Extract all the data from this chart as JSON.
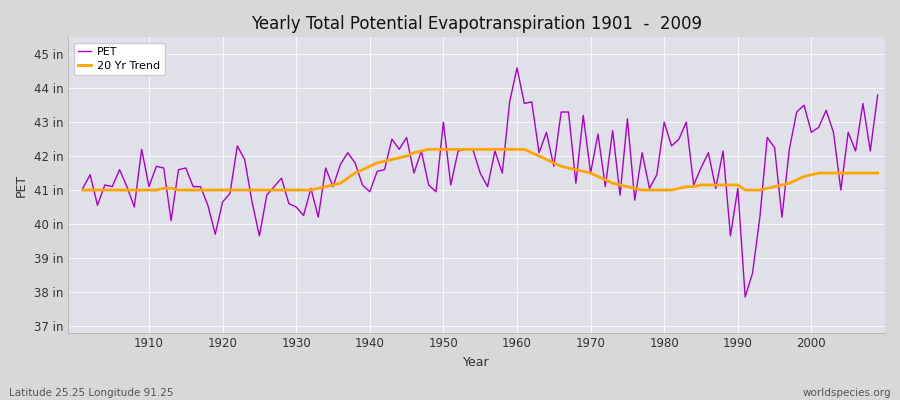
{
  "title": "Yearly Total Potential Evapotranspiration 1901  -  2009",
  "xlabel": "Year",
  "ylabel": "PET",
  "footnote_left": "Latitude 25.25 Longitude 91.25",
  "footnote_right": "worldspecies.org",
  "pet_color": "#aa00cc",
  "trend_color": "#FFA500",
  "fig_facecolor": "#d8d8d8",
  "plot_facecolor": "#e0e0e8",
  "ylim": [
    36.8,
    45.5
  ],
  "yticks": [
    37,
    38,
    39,
    40,
    41,
    42,
    43,
    44,
    45
  ],
  "ytick_labels": [
    "37 in",
    "38 in",
    "39 in",
    "40 in",
    "41 in",
    "42 in",
    "43 in",
    "44 in",
    "45 in"
  ],
  "xlim": [
    1899,
    2010
  ],
  "xticks": [
    1910,
    1920,
    1930,
    1940,
    1950,
    1960,
    1970,
    1980,
    1990,
    2000
  ],
  "years": [
    1901,
    1902,
    1903,
    1904,
    1905,
    1906,
    1907,
    1908,
    1909,
    1910,
    1911,
    1912,
    1913,
    1914,
    1915,
    1916,
    1917,
    1918,
    1919,
    1920,
    1921,
    1922,
    1923,
    1924,
    1925,
    1926,
    1927,
    1928,
    1929,
    1930,
    1931,
    1932,
    1933,
    1934,
    1935,
    1936,
    1937,
    1938,
    1939,
    1940,
    1941,
    1942,
    1943,
    1944,
    1945,
    1946,
    1947,
    1948,
    1949,
    1950,
    1951,
    1952,
    1953,
    1954,
    1955,
    1956,
    1957,
    1958,
    1959,
    1960,
    1961,
    1962,
    1963,
    1964,
    1965,
    1966,
    1967,
    1968,
    1969,
    1970,
    1971,
    1972,
    1973,
    1974,
    1975,
    1976,
    1977,
    1978,
    1979,
    1980,
    1981,
    1982,
    1983,
    1984,
    1985,
    1986,
    1987,
    1988,
    1989,
    1990,
    1991,
    1992,
    1993,
    1994,
    1995,
    1996,
    1997,
    1998,
    1999,
    2000,
    2001,
    2002,
    2003,
    2004,
    2005,
    2006,
    2007,
    2008,
    2009
  ],
  "pet_values": [
    41.05,
    41.45,
    40.55,
    41.15,
    41.1,
    41.6,
    41.1,
    40.5,
    42.2,
    41.1,
    41.7,
    41.65,
    40.1,
    41.6,
    41.65,
    41.1,
    41.1,
    40.55,
    39.7,
    40.65,
    40.9,
    42.3,
    41.9,
    40.65,
    39.65,
    40.85,
    41.1,
    41.35,
    40.6,
    40.5,
    40.25,
    41.05,
    40.2,
    41.65,
    41.1,
    41.75,
    42.1,
    41.8,
    41.15,
    40.95,
    41.55,
    41.6,
    42.5,
    42.2,
    42.55,
    41.5,
    42.15,
    41.15,
    40.95,
    43.0,
    41.15,
    42.15,
    42.2,
    42.2,
    41.5,
    41.1,
    42.15,
    41.5,
    43.6,
    44.6,
    43.55,
    43.6,
    42.1,
    42.7,
    41.7,
    43.3,
    43.3,
    41.2,
    43.2,
    41.5,
    42.65,
    41.1,
    42.75,
    40.85,
    43.1,
    40.7,
    42.1,
    41.05,
    41.45,
    43.0,
    42.3,
    42.5,
    43.0,
    41.15,
    41.65,
    42.1,
    41.05,
    42.15,
    39.65,
    41.05,
    37.85,
    38.55,
    40.2,
    42.55,
    42.25,
    40.2,
    42.2,
    43.3,
    43.5,
    42.7,
    42.85,
    43.35,
    42.7,
    41.0,
    42.7,
    42.15,
    43.55,
    42.15,
    43.8
  ],
  "trend_values": [
    41.0,
    41.0,
    41.0,
    41.0,
    41.0,
    41.0,
    41.0,
    41.0,
    41.0,
    41.0,
    41.0,
    41.05,
    41.05,
    41.0,
    41.0,
    41.0,
    41.0,
    41.0,
    41.0,
    41.0,
    41.0,
    41.0,
    41.0,
    41.0,
    41.0,
    41.0,
    41.0,
    41.0,
    41.0,
    41.0,
    41.0,
    41.0,
    41.05,
    41.1,
    41.15,
    41.2,
    41.35,
    41.5,
    41.6,
    41.7,
    41.8,
    41.85,
    41.9,
    41.95,
    42.0,
    42.1,
    42.15,
    42.2,
    42.2,
    42.2,
    42.2,
    42.2,
    42.2,
    42.2,
    42.2,
    42.2,
    42.2,
    42.2,
    42.2,
    42.2,
    42.2,
    42.1,
    42.0,
    41.9,
    41.8,
    41.7,
    41.65,
    41.6,
    41.55,
    41.5,
    41.4,
    41.3,
    41.2,
    41.15,
    41.1,
    41.05,
    41.0,
    41.0,
    41.0,
    41.0,
    41.0,
    41.05,
    41.1,
    41.1,
    41.15,
    41.15,
    41.15,
    41.15,
    41.15,
    41.15,
    41.0,
    41.0,
    41.0,
    41.05,
    41.1,
    41.15,
    41.2,
    41.3,
    41.4,
    41.45,
    41.5,
    41.5,
    41.5,
    41.5,
    41.5,
    41.5,
    41.5,
    41.5,
    41.5
  ]
}
